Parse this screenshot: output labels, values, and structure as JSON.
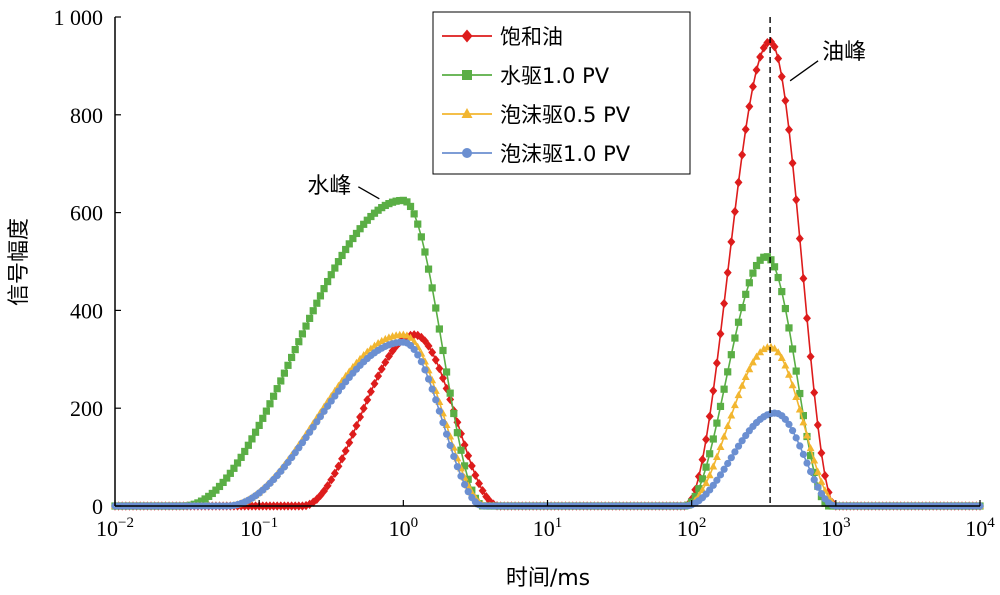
{
  "chart_data": {
    "type": "line",
    "xscale": "log",
    "xlabel": "时间/ms",
    "ylabel": "信号幅度",
    "xlim": [
      0.01,
      10000
    ],
    "ylim": [
      0,
      1000
    ],
    "x_ticks": [
      {
        "base": "10",
        "exp": "−2"
      },
      {
        "base": "10",
        "exp": "−1"
      },
      {
        "base": "10",
        "exp": "0"
      },
      {
        "base": "10",
        "exp": "1"
      },
      {
        "base": "10",
        "exp": "2"
      },
      {
        "base": "10",
        "exp": "3"
      },
      {
        "base": "10",
        "exp": "4"
      }
    ],
    "y_ticks": [
      "0",
      "200",
      "400",
      "600",
      "800",
      "1 000"
    ],
    "grid": false,
    "legend_position": "top-center",
    "reference_line": {
      "x": 350,
      "style": "dashed"
    },
    "annotations": [
      {
        "text": "水峰",
        "x": 1.0,
        "y": 620
      },
      {
        "text": "油峰",
        "x": 350,
        "y": 890
      }
    ],
    "series": [
      {
        "name": "饱和油",
        "color": "#dd1c1c",
        "marker": "diamond",
        "peaks": [
          {
            "start": 0.2,
            "end": 4.6,
            "peak_x": 1.2,
            "peak_y": 350
          },
          {
            "start": 90,
            "end": 1000,
            "peak_x": 350,
            "peak_y": 950
          }
        ]
      },
      {
        "name": "水驱1.0 PV",
        "color": "#5aae45",
        "marker": "square",
        "peaks": [
          {
            "start": 0.03,
            "end": 3.6,
            "peak_x": 1.0,
            "peak_y": 625
          },
          {
            "start": 90,
            "end": 900,
            "peak_x": 330,
            "peak_y": 510
          }
        ]
      },
      {
        "name": "泡沫驱0.5 PV",
        "color": "#f2b630",
        "marker": "triangle",
        "peaks": [
          {
            "start": 0.06,
            "end": 3.8,
            "peak_x": 1.0,
            "peak_y": 350
          },
          {
            "start": 90,
            "end": 1050,
            "peak_x": 350,
            "peak_y": 325
          }
        ]
      },
      {
        "name": "泡沫驱1.0 PV",
        "color": "#6b8fd1",
        "marker": "circle",
        "peaks": [
          {
            "start": 0.06,
            "end": 3.6,
            "peak_x": 1.0,
            "peak_y": 335
          },
          {
            "start": 90,
            "end": 1000,
            "peak_x": 380,
            "peak_y": 190
          }
        ]
      }
    ]
  }
}
